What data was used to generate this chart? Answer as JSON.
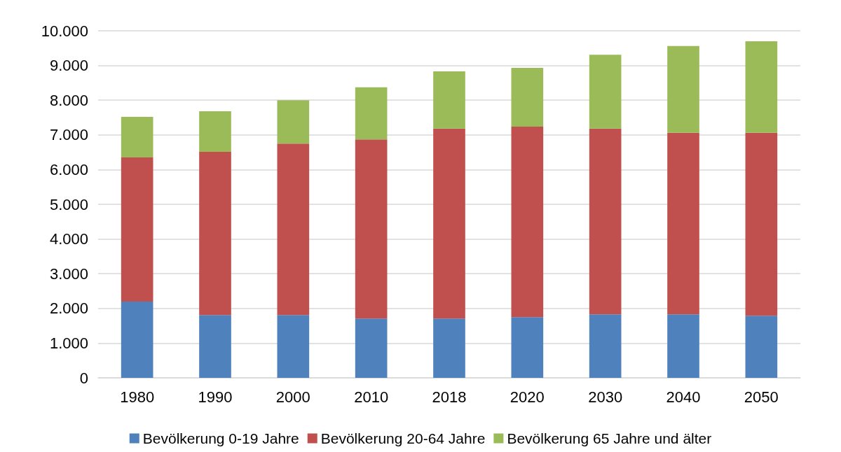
{
  "chart_data": {
    "type": "bar",
    "stacked": true,
    "categories": [
      "1980",
      "1990",
      "2000",
      "2010",
      "2018",
      "2020",
      "2030",
      "2040",
      "2050"
    ],
    "series": [
      {
        "name": "Bevölkerung 0-19 Jahre",
        "color": "#4f81bd",
        "values": [
          2200,
          1810,
          1810,
          1710,
          1710,
          1750,
          1830,
          1830,
          1790
        ]
      },
      {
        "name": "Bevölkerung 20-64 Jahre",
        "color": "#c0504d",
        "values": [
          4150,
          4700,
          4940,
          5160,
          5470,
          5490,
          5350,
          5230,
          5270
        ]
      },
      {
        "name": "Bevölkerung 65 Jahre und älter",
        "color": "#9bbb59",
        "values": [
          1170,
          1170,
          1250,
          1500,
          1650,
          1690,
          2130,
          2500,
          2640
        ]
      }
    ],
    "ylim": [
      0,
      10000
    ],
    "yticks": [
      0,
      {
        "value": 1000,
        "label": "1.000"
      },
      {
        "value": 2000,
        "label": "2.000"
      },
      {
        "value": 3000,
        "label": "3.000"
      },
      {
        "value": 4000,
        "label": "4.000"
      },
      {
        "value": 5000,
        "label": "5.000"
      },
      {
        "value": 6000,
        "label": "6.000"
      },
      {
        "value": 7000,
        "label": "7.000"
      },
      {
        "value": 8000,
        "label": "8.000"
      },
      {
        "value": 9000,
        "label": "9.000"
      },
      {
        "value": 10000,
        "label": "10.000"
      }
    ],
    "grid": "y",
    "legend": "bottom"
  }
}
